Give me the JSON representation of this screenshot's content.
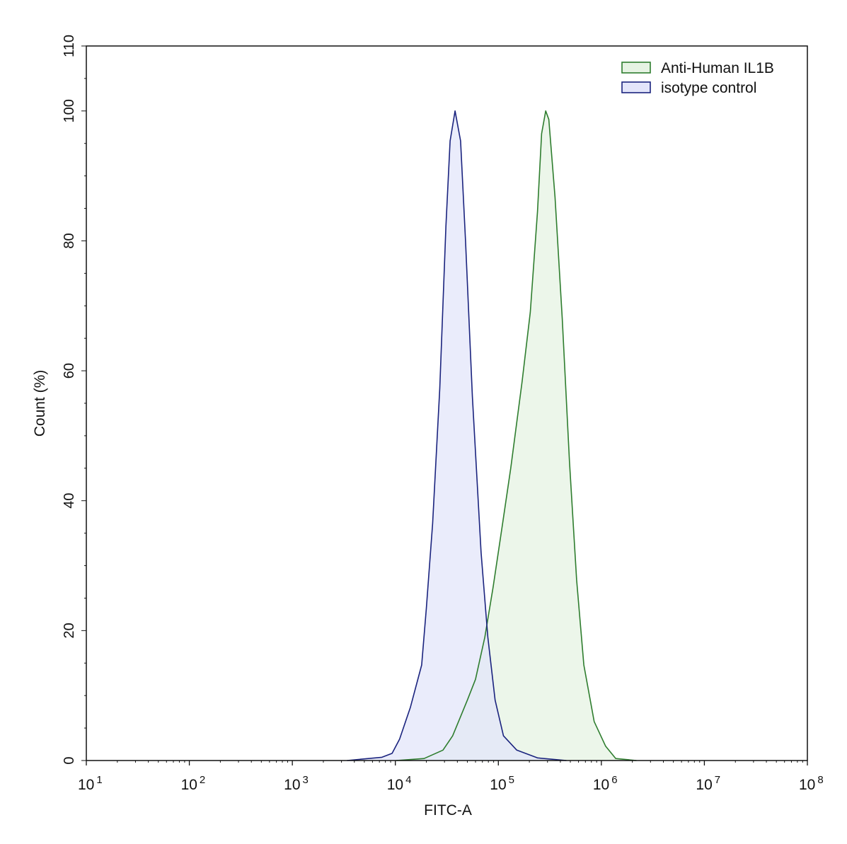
{
  "chart_data": {
    "type": "area",
    "xlabel": "FITC-A",
    "ylabel": "Count  (%)",
    "xscale": "log",
    "xlim": [
      10,
      100000000
    ],
    "ylim": [
      0,
      110
    ],
    "x_ticks": [
      {
        "base": "10",
        "exp": "1",
        "value": 10
      },
      {
        "base": "10",
        "exp": "2",
        "value": 100
      },
      {
        "base": "10",
        "exp": "3",
        "value": 1000
      },
      {
        "base": "10",
        "exp": "4",
        "value": 10000
      },
      {
        "base": "10",
        "exp": "5",
        "value": 100000
      },
      {
        "base": "10",
        "exp": "6",
        "value": 1000000
      },
      {
        "base": "10",
        "exp": "7",
        "value": 10000000
      },
      {
        "base": "10",
        "exp": "8",
        "value": 100000000
      }
    ],
    "y_ticks": [
      "0",
      "20",
      "40",
      "60",
      "80",
      "100",
      "110"
    ],
    "grid": false,
    "legend_position": "top-right",
    "series": [
      {
        "name": "Anti-Human IL1B",
        "stroke": "#2e7d2e",
        "fill": "#e6f3e3",
        "x": [
          10200,
          19000,
          29000,
          36000,
          50000,
          60000,
          74000,
          89000,
          110000,
          132000,
          170000,
          204000,
          240000,
          263000,
          288000,
          309000,
          355000,
          417000,
          490000,
          575000,
          676000,
          851000,
          1100000,
          1380000,
          2190000
        ],
        "y": [
          0,
          0.3,
          1.6,
          3.8,
          9.3,
          12.5,
          19,
          26.7,
          36.5,
          45,
          58.3,
          69,
          84.5,
          96.5,
          100,
          98.7,
          86.7,
          68,
          46,
          27.8,
          14.7,
          6,
          2.2,
          0.3,
          0
        ]
      },
      {
        "name": "isotype control",
        "stroke": "#1a237e",
        "fill": "#e3e5fa",
        "x": [
          3400,
          7400,
          9300,
          11000,
          14000,
          18000,
          20000,
          23000,
          27000,
          31000,
          34000,
          38000,
          43000,
          48000,
          56000,
          68000,
          79000,
          93000,
          112000,
          151000,
          240000,
          457000
        ],
        "y": [
          0,
          0.5,
          1.1,
          3.3,
          8.2,
          14.7,
          23.4,
          36.5,
          57.3,
          82.3,
          95.4,
          100,
          95.4,
          80,
          56,
          32,
          19,
          9.3,
          3.8,
          1.6,
          0.4,
          0
        ]
      }
    ]
  }
}
